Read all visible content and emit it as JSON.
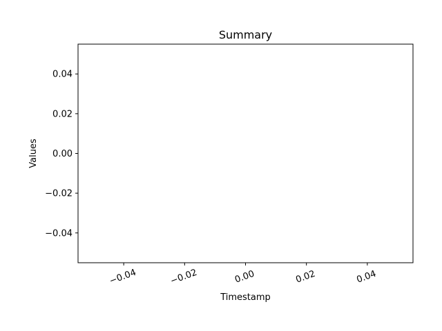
{
  "chart_data": {
    "type": "line",
    "title": "Summary",
    "xlabel": "Timestamp",
    "ylabel": "Values",
    "xlim": [
      -0.055,
      0.055
    ],
    "ylim": [
      -0.055,
      0.055
    ],
    "x_ticks": [
      -0.04,
      -0.02,
      0.0,
      0.02,
      0.04
    ],
    "x_tick_labels": [
      "−0.04",
      "−0.02",
      "0.00",
      "0.02",
      "0.04"
    ],
    "y_ticks": [
      -0.04,
      -0.02,
      0.0,
      0.02,
      0.04
    ],
    "y_tick_labels": [
      "−0.04",
      "−0.02",
      "0.00",
      "0.02",
      "0.04"
    ],
    "x_tick_rotation": -20,
    "grid": false,
    "series": []
  }
}
